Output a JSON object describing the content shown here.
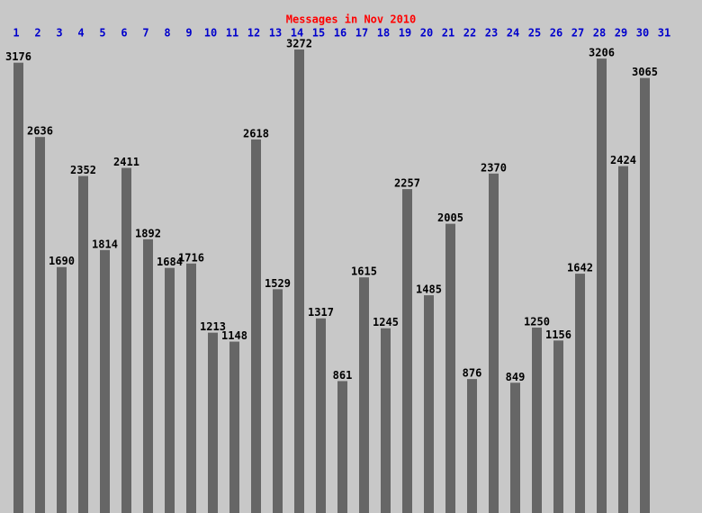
{
  "chart_data": {
    "type": "bar",
    "title": "Messages in Nov 2010",
    "categories": [
      "1",
      "2",
      "3",
      "4",
      "5",
      "6",
      "7",
      "8",
      "9",
      "10",
      "11",
      "12",
      "13",
      "14",
      "15",
      "16",
      "17",
      "18",
      "19",
      "20",
      "21",
      "22",
      "23",
      "24",
      "25",
      "26",
      "27",
      "28",
      "29",
      "30",
      "31"
    ],
    "values": [
      3176,
      2636,
      1690,
      2352,
      1814,
      2411,
      1892,
      1684,
      1716,
      1213,
      1148,
      2618,
      1529,
      3272,
      1317,
      861,
      1615,
      1245,
      2257,
      1485,
      2005,
      876,
      2370,
      849,
      1250,
      1156,
      1642,
      3206,
      2424,
      3065,
      null
    ],
    "color": "#666666",
    "title_color": "#ff0000",
    "category_color": "#0000cc"
  }
}
